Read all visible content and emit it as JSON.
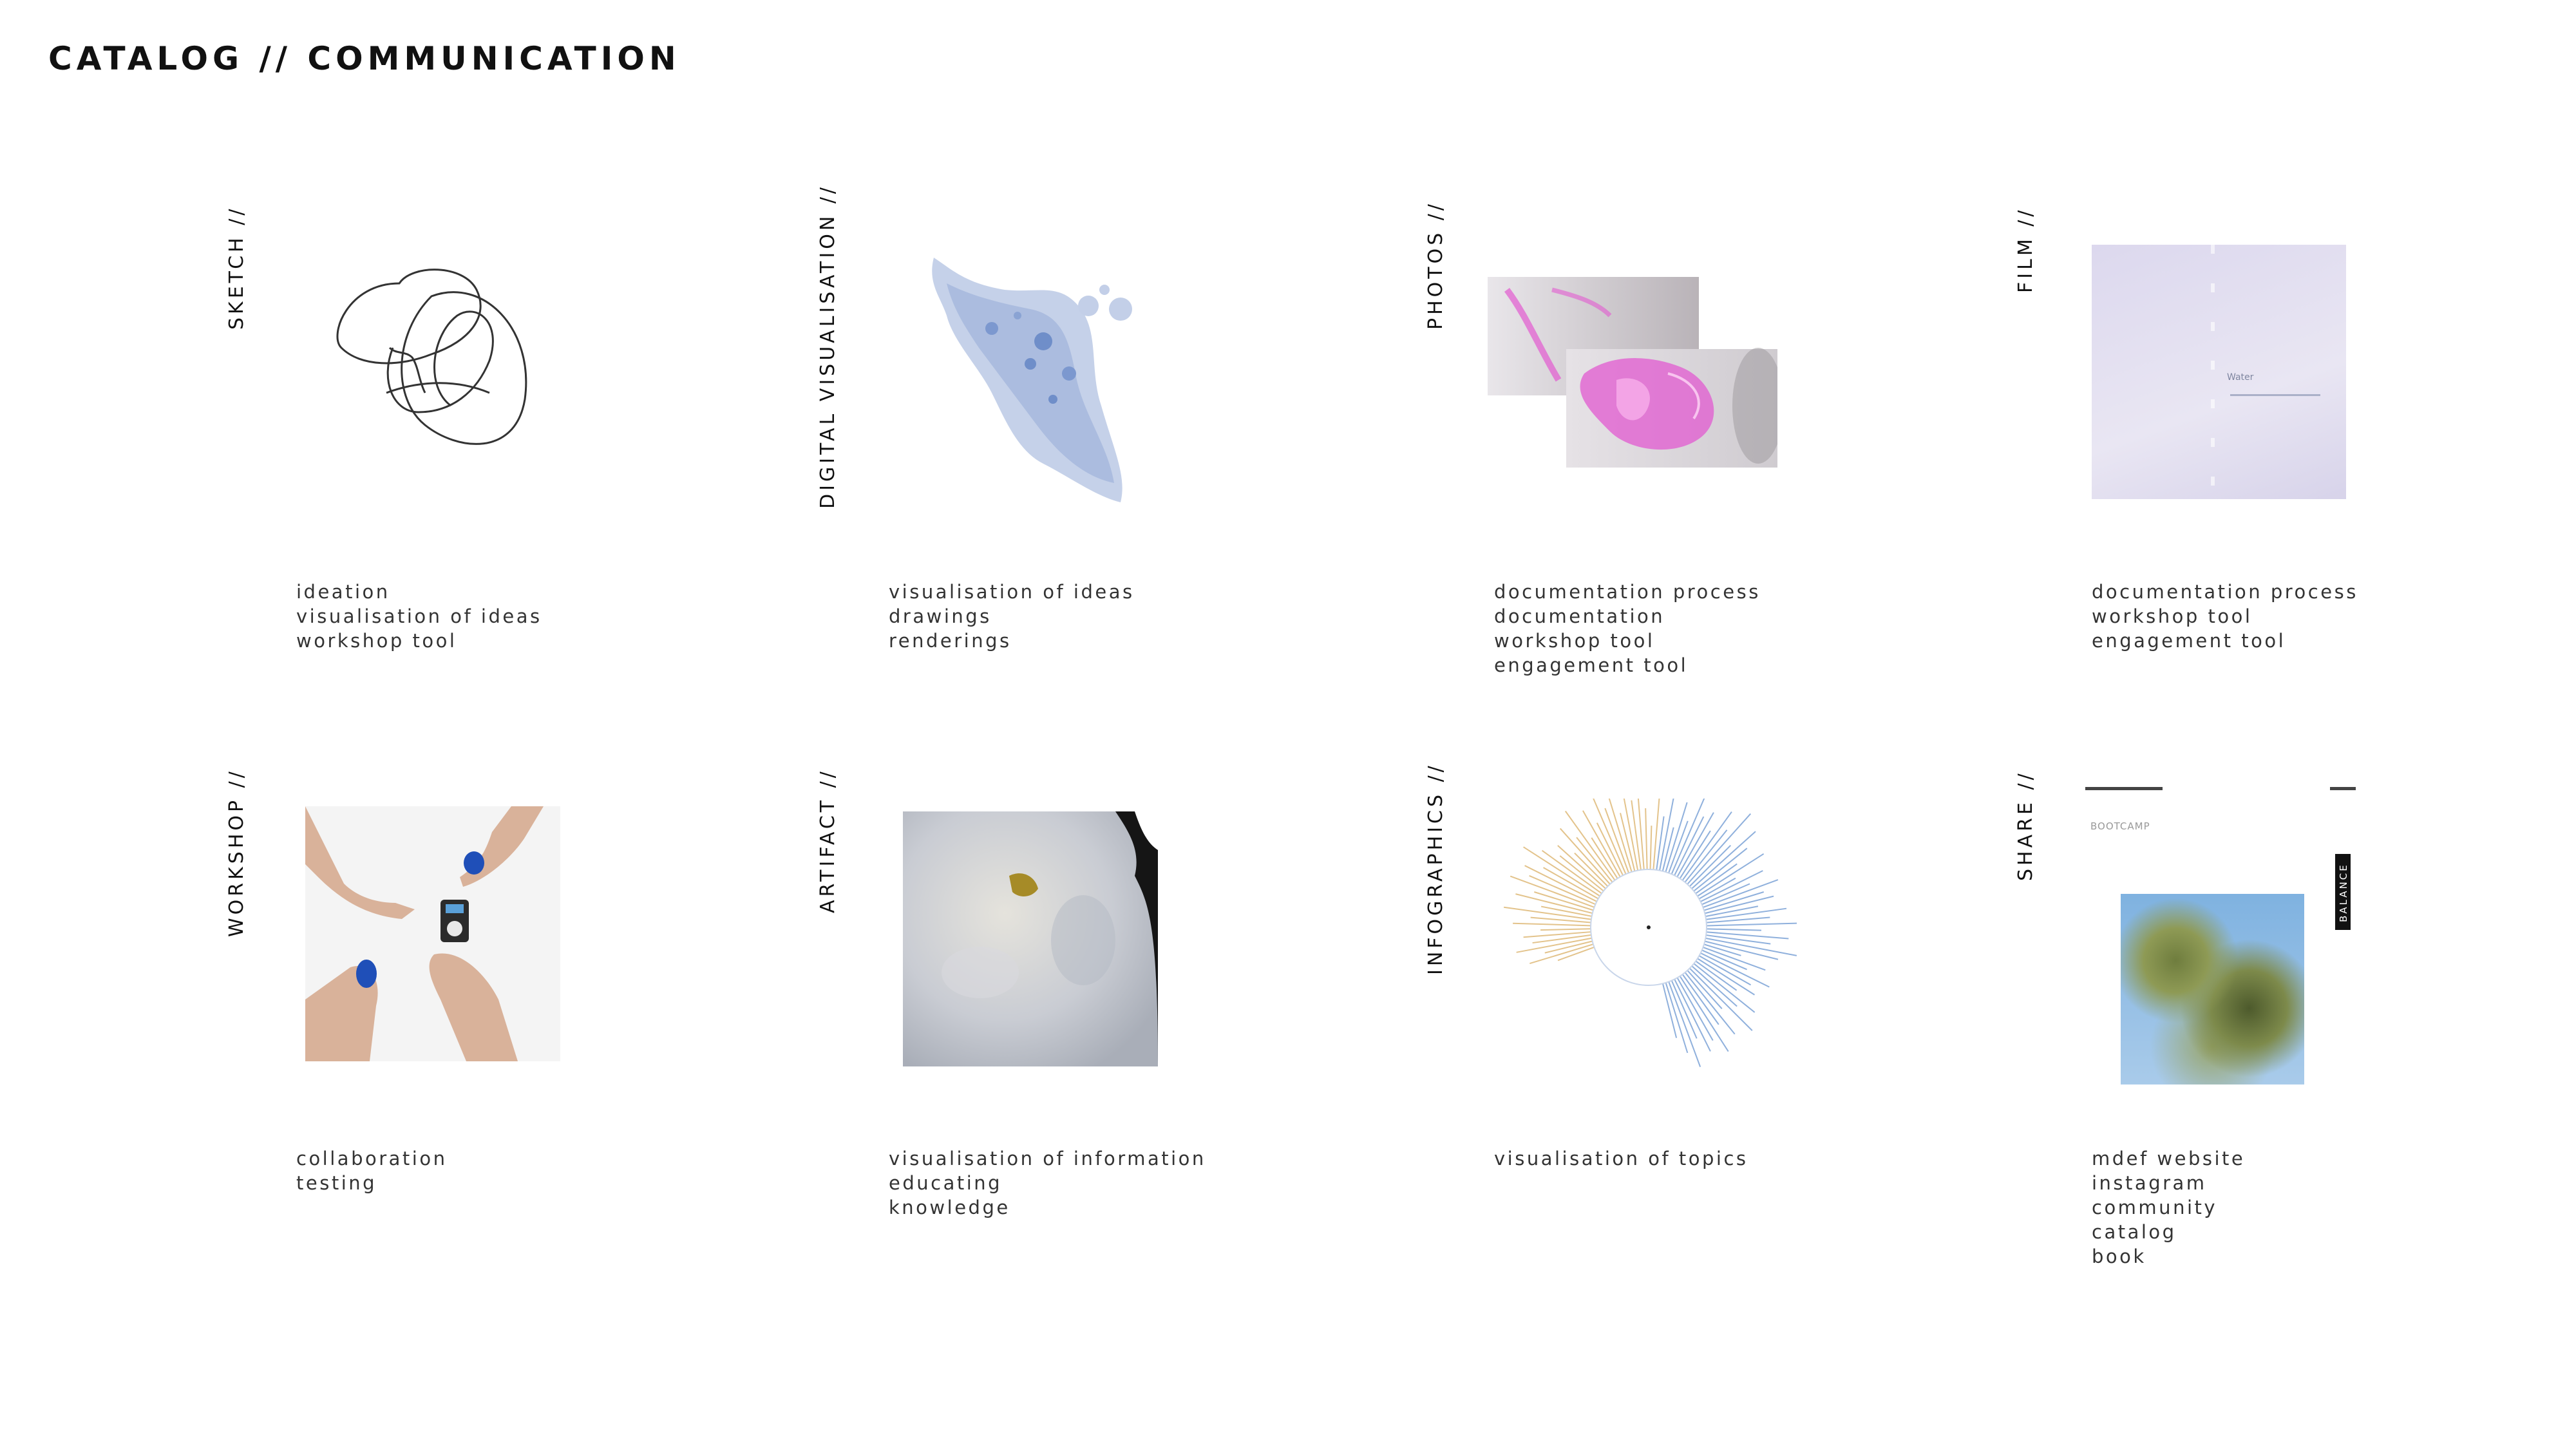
{
  "page": {
    "title": "CATALOG // COMMUNICATION"
  },
  "categories": [
    {
      "label": "SKETCH //",
      "items": [
        "ideation",
        "visualisation of ideas",
        "workshop tool"
      ]
    },
    {
      "label": "DIGITAL VISUALISATION //",
      "items": [
        "visualisation of ideas",
        "drawings",
        "renderings"
      ]
    },
    {
      "label": "PHOTOS //",
      "items": [
        "documentation process",
        "documentation",
        "workshop tool",
        "engagement tool"
      ]
    },
    {
      "label": "FILM //",
      "items": [
        "documentation process",
        "workshop tool",
        "engagement tool"
      ]
    },
    {
      "label": "WORKSHOP //",
      "items": [
        "collaboration",
        "testing"
      ]
    },
    {
      "label": "ARTIFACT //",
      "items": [
        "visualisation of information",
        "educating",
        "knowledge"
      ]
    },
    {
      "label": "INFOGRAPHICS //",
      "items": [
        "visualisation of topics"
      ]
    },
    {
      "label": "SHARE //",
      "items": [
        "mdef website",
        "instagram",
        "community",
        "catalog",
        "book"
      ]
    }
  ],
  "share_thumb": {
    "tag": "BOOTCAMP",
    "vertical_word": "BALANCE"
  },
  "film_thumb": {
    "caption": "Water"
  },
  "colors": {
    "title": "#111111",
    "label": "#111111",
    "description": "#333333",
    "blue_wash": "#9fb4da",
    "magenta": "#e25ad0",
    "infographic_warm": "#e3c38b",
    "infographic_cool": "#8fb0dc"
  },
  "icons": [
    "sketch-scribble-image",
    "watercolor-splash-image",
    "pink-ink-photo",
    "film-still-image",
    "workshop-hands-photo",
    "resin-artifact-photo",
    "radial-infographic-image",
    "share-page-image"
  ]
}
